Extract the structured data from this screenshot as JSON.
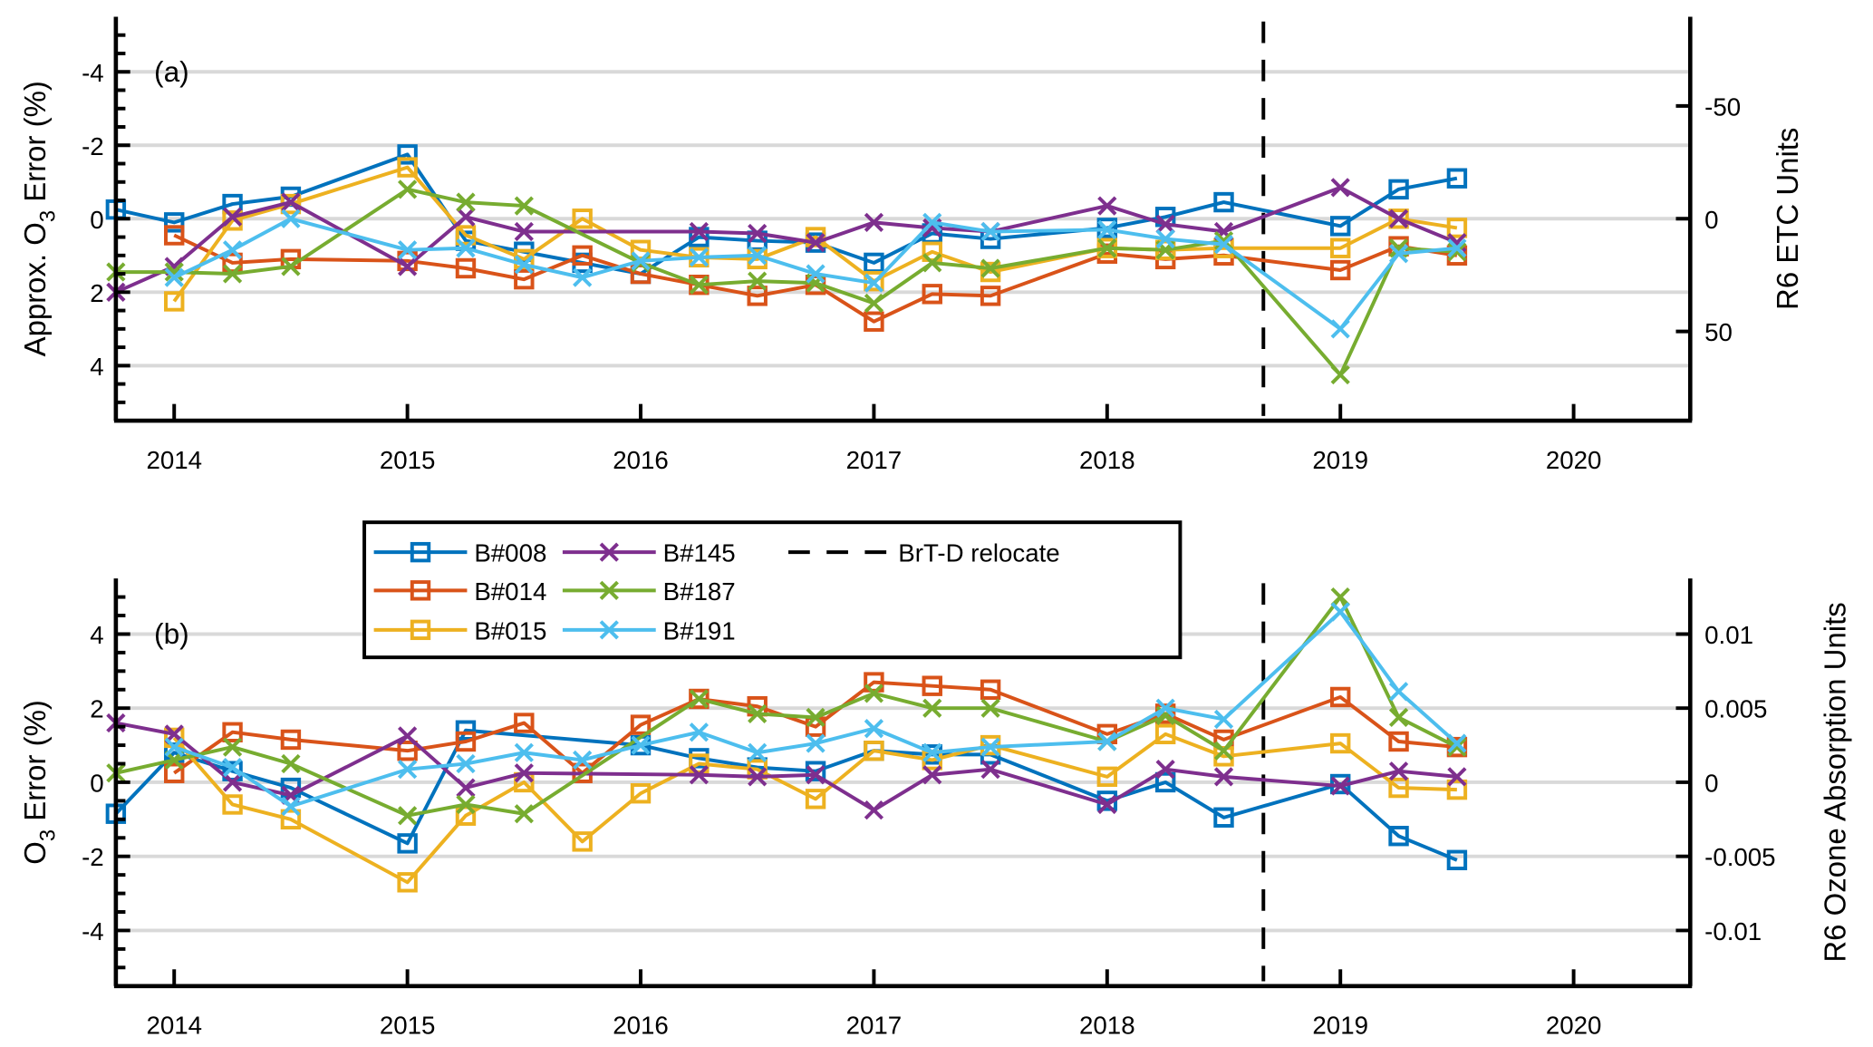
{
  "chart_data": [
    {
      "type": "line",
      "panel_label": "(a)",
      "ylabel": "Approx. O3 Error (%)",
      "ylabel_parts": [
        "Approx. O",
        "3",
        " Error (%)"
      ],
      "y2label": "R6 ETC Units",
      "xlim": [
        2013.75,
        2020.5
      ],
      "ylim": [
        -5.5,
        5.5
      ],
      "y_reversed": true,
      "yticks": [
        -4,
        -2,
        0,
        2,
        4
      ],
      "ytick_labels": [
        "-4",
        "-2",
        "0",
        "2",
        "4"
      ],
      "y2ticks_pct": [
        -3.07,
        0,
        3.07
      ],
      "y2tick_labels": [
        "-50",
        "0",
        "50"
      ],
      "xticks": [
        2014,
        2015,
        2016,
        2017,
        2018,
        2019,
        2020
      ],
      "xtick_labels": [
        "2014",
        "2015",
        "2016",
        "2017",
        "2018",
        "2019",
        "2020"
      ],
      "grid": "horizontal",
      "relocate_x": 2018.67,
      "series": [
        {
          "name": "B#008",
          "color": "#0072BD",
          "marker": "square",
          "x": [
            2013.75,
            2014,
            2014.25,
            2014.5,
            2015,
            2015.25,
            2015.5,
            2015.75,
            2016,
            2016.25,
            2016.5,
            2016.75,
            2017,
            2017.25,
            2017.5,
            2018,
            2018.25,
            2018.5,
            2019,
            2019.25,
            2019.5
          ],
          "y": [
            -0.25,
            0.1,
            -0.4,
            -0.6,
            -1.75,
            0.6,
            0.9,
            1.2,
            1.5,
            0.5,
            0.6,
            0.65,
            1.2,
            0.4,
            0.55,
            0.25,
            -0.05,
            -0.45,
            0.2,
            -0.8,
            -1.1
          ]
        },
        {
          "name": "B#014",
          "color": "#D95319",
          "marker": "square",
          "x": [
            2014,
            2014.25,
            2014.5,
            2015,
            2015.25,
            2015.5,
            2015.75,
            2016,
            2016.25,
            2016.5,
            2016.75,
            2017,
            2017.25,
            2017.5,
            2018,
            2018.25,
            2018.5,
            2019,
            2019.25,
            2019.5
          ],
          "y": [
            0.45,
            1.2,
            1.1,
            1.15,
            1.35,
            1.65,
            1.0,
            1.5,
            1.8,
            2.1,
            1.8,
            2.8,
            2.05,
            2.1,
            0.95,
            1.1,
            1.0,
            1.4,
            0.75,
            1.0
          ]
        },
        {
          "name": "B#015",
          "color": "#EDB120",
          "marker": "square",
          "x": [
            2014,
            2014.25,
            2014.5,
            2015,
            2015.25,
            2015.5,
            2015.75,
            2016,
            2016.25,
            2016.5,
            2016.75,
            2017,
            2017.25,
            2017.5,
            2018,
            2018.25,
            2018.5,
            2019,
            2019.25,
            2019.5
          ],
          "y": [
            2.25,
            0.05,
            -0.4,
            -1.4,
            0.45,
            1.1,
            0.0,
            0.85,
            1.05,
            1.1,
            0.5,
            1.7,
            0.9,
            1.45,
            0.8,
            0.85,
            0.8,
            0.8,
            0.0,
            0.25
          ]
        },
        {
          "name": "B#145",
          "color": "#7E2F8E",
          "marker": "x",
          "x": [
            2013.75,
            2014,
            2014.25,
            2014.5,
            2015,
            2015.25,
            2015.5,
            2016.25,
            2016.5,
            2016.75,
            2017,
            2017.25,
            2017.5,
            2018,
            2018.25,
            2018.5,
            2019,
            2019.25,
            2019.5
          ],
          "y": [
            2.0,
            1.3,
            -0.05,
            -0.45,
            1.3,
            -0.05,
            0.35,
            0.35,
            0.4,
            0.65,
            0.1,
            0.25,
            0.35,
            -0.35,
            0.15,
            0.35,
            -0.85,
            0.0,
            0.65
          ]
        },
        {
          "name": "B#187",
          "color": "#77AC30",
          "marker": "x",
          "x": [
            2013.75,
            2014,
            2014.25,
            2014.5,
            2015,
            2015.25,
            2015.5,
            2016,
            2016.25,
            2016.5,
            2016.75,
            2017,
            2017.25,
            2017.5,
            2018,
            2018.25,
            2018.5,
            2019,
            2019.25,
            2019.5
          ],
          "y": [
            1.45,
            1.45,
            1.5,
            1.3,
            -0.8,
            -0.45,
            -0.35,
            1.2,
            1.8,
            1.7,
            1.75,
            2.3,
            1.2,
            1.35,
            0.8,
            0.85,
            0.6,
            4.25,
            0.8,
            0.9
          ]
        },
        {
          "name": "B#191",
          "color": "#4DBEEE",
          "marker": "x",
          "x": [
            2014,
            2014.25,
            2014.5,
            2015,
            2015.25,
            2015.5,
            2015.75,
            2016,
            2016.25,
            2016.5,
            2016.75,
            2017,
            2017.25,
            2017.5,
            2018,
            2018.25,
            2018.5,
            2019,
            2019.25,
            2019.5
          ],
          "y": [
            1.6,
            0.85,
            0.0,
            0.85,
            0.8,
            1.25,
            1.6,
            1.15,
            1.05,
            1.0,
            1.5,
            1.75,
            0.1,
            0.35,
            0.3,
            0.55,
            0.7,
            3.0,
            0.95,
            0.8
          ]
        }
      ]
    },
    {
      "type": "line",
      "panel_label": "(b)",
      "ylabel": "O3 Error (%)",
      "ylabel_parts": [
        "O",
        "3",
        " Error (%)"
      ],
      "y2label": "R6 Ozone Absorption Units",
      "xlim": [
        2013.75,
        2020.5
      ],
      "ylim": [
        -5.5,
        5.5
      ],
      "y_reversed": false,
      "yticks": [
        -4,
        -2,
        0,
        2,
        4
      ],
      "ytick_labels": [
        "-4",
        "-2",
        "0",
        "2",
        "4"
      ],
      "y2ticks_pct": [
        4,
        2,
        0,
        -2,
        -4
      ],
      "y2tick_labels": [
        "0.01",
        "0.005",
        "0",
        "-0.005",
        "-0.01"
      ],
      "xticks": [
        2014,
        2015,
        2016,
        2017,
        2018,
        2019,
        2020
      ],
      "xtick_labels": [
        "2014",
        "2015",
        "2016",
        "2017",
        "2018",
        "2019",
        "2020"
      ],
      "grid": "horizontal",
      "relocate_x": 2018.67,
      "series": [
        {
          "name": "B#008",
          "color": "#0072BD",
          "marker": "square",
          "x": [
            2013.75,
            2014,
            2014.25,
            2014.5,
            2015,
            2015.25,
            2016,
            2016.25,
            2016.5,
            2016.75,
            2017,
            2017.25,
            2017.5,
            2018,
            2018.25,
            2018.5,
            2019,
            2019.25,
            2019.5
          ],
          "y": [
            -0.85,
            0.8,
            0.3,
            -0.15,
            -1.65,
            1.4,
            1.0,
            0.65,
            0.4,
            0.3,
            0.85,
            0.75,
            0.75,
            -0.5,
            0.0,
            -0.95,
            -0.05,
            -1.45,
            -2.1
          ]
        },
        {
          "name": "B#014",
          "color": "#D95319",
          "marker": "square",
          "x": [
            2014,
            2014.25,
            2014.5,
            2015,
            2015.25,
            2015.5,
            2015.75,
            2016,
            2016.25,
            2016.5,
            2016.75,
            2017,
            2017.25,
            2017.5,
            2018,
            2018.25,
            2018.5,
            2019,
            2019.25,
            2019.5
          ],
          "y": [
            0.25,
            1.35,
            1.15,
            0.85,
            1.1,
            1.6,
            0.25,
            1.55,
            2.25,
            2.05,
            1.5,
            2.7,
            2.6,
            2.5,
            1.3,
            1.85,
            1.15,
            2.3,
            1.1,
            0.95
          ]
        },
        {
          "name": "B#015",
          "color": "#EDB120",
          "marker": "square",
          "x": [
            2014,
            2014.25,
            2014.5,
            2015,
            2015.25,
            2015.5,
            2015.75,
            2016,
            2016.25,
            2016.5,
            2016.75,
            2017,
            2017.25,
            2017.5,
            2018,
            2018.25,
            2018.5,
            2019,
            2019.25,
            2019.5
          ],
          "y": [
            1.2,
            -0.6,
            -1.0,
            -2.7,
            -0.9,
            0.0,
            -1.6,
            -0.3,
            0.5,
            0.35,
            -0.45,
            0.85,
            0.6,
            1.0,
            0.15,
            1.3,
            0.7,
            1.05,
            -0.15,
            -0.2
          ]
        },
        {
          "name": "B#145",
          "color": "#7E2F8E",
          "marker": "x",
          "x": [
            2013.75,
            2014,
            2014.25,
            2014.5,
            2015,
            2015.25,
            2015.5,
            2016.25,
            2016.5,
            2016.75,
            2017,
            2017.25,
            2017.5,
            2018,
            2018.25,
            2018.5,
            2019,
            2019.25,
            2019.5
          ],
          "y": [
            1.6,
            1.3,
            0.0,
            -0.35,
            1.25,
            -0.15,
            0.25,
            0.2,
            0.15,
            0.2,
            -0.75,
            0.2,
            0.35,
            -0.6,
            0.35,
            0.15,
            -0.1,
            0.3,
            0.15
          ]
        },
        {
          "name": "B#187",
          "color": "#77AC30",
          "marker": "x",
          "x": [
            2013.75,
            2014,
            2014.25,
            2014.5,
            2015,
            2015.25,
            2015.5,
            2016.25,
            2016.5,
            2016.75,
            2017,
            2017.25,
            2017.5,
            2018,
            2018.25,
            2018.5,
            2019,
            2019.25,
            2019.5
          ],
          "y": [
            0.25,
            0.6,
            0.95,
            0.5,
            -0.9,
            -0.6,
            -0.85,
            2.25,
            1.85,
            1.75,
            2.4,
            2.0,
            2.0,
            1.1,
            1.8,
            0.85,
            5.0,
            1.75,
            0.95
          ]
        },
        {
          "name": "B#191",
          "color": "#4DBEEE",
          "marker": "x",
          "x": [
            2014,
            2014.25,
            2014.5,
            2015,
            2015.25,
            2015.5,
            2015.75,
            2016,
            2016.25,
            2016.5,
            2016.75,
            2017,
            2017.25,
            2017.5,
            2018,
            2018.25,
            2018.5,
            2019,
            2019.25,
            2019.5
          ],
          "y": [
            0.95,
            0.4,
            -0.65,
            0.35,
            0.5,
            0.8,
            0.6,
            1.0,
            1.35,
            0.8,
            1.05,
            1.45,
            0.8,
            0.95,
            1.1,
            2.0,
            1.7,
            4.6,
            2.45,
            1.05
          ]
        }
      ]
    }
  ],
  "legend": {
    "placement": "panel-b-top-center",
    "entries": [
      {
        "label": "B#008",
        "color": "#0072BD",
        "marker": "square",
        "style": "solid"
      },
      {
        "label": "B#145",
        "color": "#7E2F8E",
        "marker": "x",
        "style": "solid"
      },
      {
        "label": "BrT-D relocate",
        "color": "#000000",
        "marker": "none",
        "style": "dashed"
      },
      {
        "label": "B#014",
        "color": "#D95319",
        "marker": "square",
        "style": "solid"
      },
      {
        "label": "B#187",
        "color": "#77AC30",
        "marker": "x",
        "style": "solid"
      },
      null,
      {
        "label": "B#015",
        "color": "#EDB120",
        "marker": "square",
        "style": "solid"
      },
      {
        "label": "B#191",
        "color": "#4DBEEE",
        "marker": "x",
        "style": "solid"
      },
      null
    ]
  }
}
